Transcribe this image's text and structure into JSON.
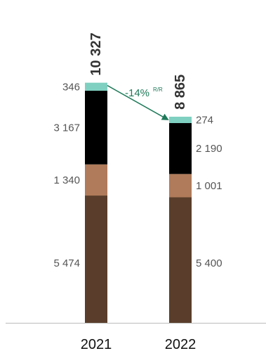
{
  "chart_data": {
    "type": "bar",
    "stacked": true,
    "categories": [
      "2021",
      "2022"
    ],
    "series": [
      {
        "values": [
          5474,
          5400
        ],
        "labels": [
          "5 474",
          "5 400"
        ],
        "color": "#5a3e2b"
      },
      {
        "values": [
          1340,
          1001
        ],
        "labels": [
          "1 340",
          "1 001"
        ],
        "color": "#b07b5a"
      },
      {
        "values": [
          3167,
          2190
        ],
        "labels": [
          "3 167",
          "2 190"
        ],
        "color": "#000000"
      },
      {
        "values": [
          346,
          274
        ],
        "labels": [
          "346",
          "274"
        ],
        "color": "#7fd0c0"
      }
    ],
    "totals": [
      10327,
      8865
    ],
    "total_labels": [
      "10 327",
      "8 865"
    ],
    "annotation": {
      "text": "-14%",
      "suffix": "R/R",
      "color": "#1f7a5a"
    },
    "colors": {
      "axis": "#bbbbbb",
      "label": "#555555",
      "total": "#333333"
    },
    "grid": false,
    "legend": "none"
  }
}
